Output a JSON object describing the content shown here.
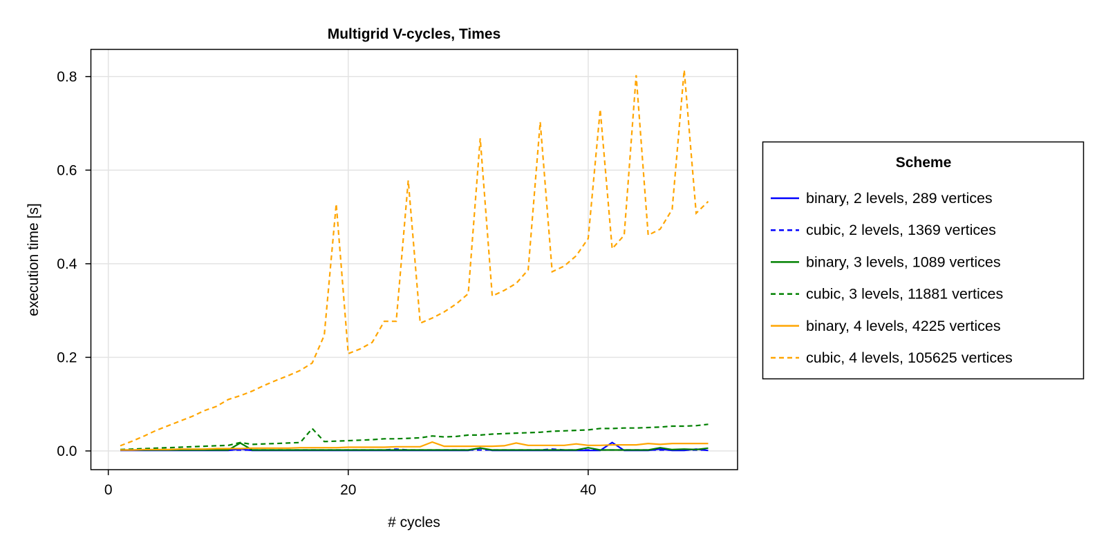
{
  "chart_data": {
    "type": "line",
    "title": "Multigrid V-cycles, Times",
    "xlabel": "# cycles",
    "ylabel": "execution time [s]",
    "xlim": [
      -1.45,
      52.45
    ],
    "ylim": [
      -0.04,
      0.858
    ],
    "xticks": [
      0,
      20,
      40
    ],
    "xtick_labels": [
      "0",
      "20",
      "40"
    ],
    "yticks": [
      0.0,
      0.2,
      0.4,
      0.6,
      0.8
    ],
    "ytick_labels": [
      "0.0",
      "0.2",
      "0.4",
      "0.6",
      "0.8"
    ],
    "grid": true,
    "legend": {
      "title": "Scheme",
      "placement": "right"
    },
    "x": [
      1,
      2,
      3,
      4,
      5,
      6,
      7,
      8,
      9,
      10,
      11,
      12,
      13,
      14,
      15,
      16,
      17,
      18,
      19,
      20,
      21,
      22,
      23,
      24,
      25,
      26,
      27,
      28,
      29,
      30,
      31,
      32,
      33,
      34,
      35,
      36,
      37,
      38,
      39,
      40,
      41,
      42,
      43,
      44,
      45,
      46,
      47,
      48,
      49,
      50
    ],
    "series": [
      {
        "name": "binary, 2 levels, 289 vertices",
        "color": "#0000ff",
        "dash": "solid",
        "values": [
          0.001,
          0.001,
          0.001,
          0.001,
          0.001,
          0.001,
          0.001,
          0.001,
          0.001,
          0.001,
          0.004,
          0.001,
          0.001,
          0.001,
          0.001,
          0.001,
          0.001,
          0.001,
          0.001,
          0.001,
          0.001,
          0.001,
          0.001,
          0.001,
          0.001,
          0.001,
          0.001,
          0.001,
          0.001,
          0.001,
          0.006,
          0.001,
          0.001,
          0.001,
          0.001,
          0.001,
          0.001,
          0.001,
          0.001,
          0.001,
          0.001,
          0.018,
          0.001,
          0.001,
          0.001,
          0.004,
          0.001,
          0.001,
          0.004,
          0.001
        ]
      },
      {
        "name": "cubic, 2 levels, 1369 vertices",
        "color": "#0000ff",
        "dash": "dashed",
        "values": [
          0.002,
          0.002,
          0.002,
          0.002,
          0.002,
          0.002,
          0.002,
          0.002,
          0.002,
          0.002,
          0.002,
          0.002,
          0.002,
          0.002,
          0.002,
          0.002,
          0.002,
          0.002,
          0.002,
          0.002,
          0.002,
          0.002,
          0.002,
          0.004,
          0.002,
          0.002,
          0.002,
          0.002,
          0.002,
          0.002,
          0.002,
          0.002,
          0.002,
          0.002,
          0.002,
          0.002,
          0.004,
          0.002,
          0.002,
          0.002,
          0.002,
          0.002,
          0.002,
          0.002,
          0.002,
          0.002,
          0.002,
          0.002,
          0.002,
          0.002
        ]
      },
      {
        "name": "binary, 3 levels, 1089 vertices",
        "color": "#008000",
        "dash": "solid",
        "values": [
          0.002,
          0.002,
          0.002,
          0.002,
          0.002,
          0.002,
          0.002,
          0.002,
          0.002,
          0.002,
          0.017,
          0.002,
          0.002,
          0.002,
          0.002,
          0.002,
          0.002,
          0.002,
          0.002,
          0.002,
          0.002,
          0.002,
          0.002,
          0.002,
          0.002,
          0.002,
          0.002,
          0.002,
          0.002,
          0.002,
          0.006,
          0.002,
          0.002,
          0.002,
          0.002,
          0.002,
          0.002,
          0.002,
          0.002,
          0.007,
          0.002,
          0.002,
          0.002,
          0.002,
          0.002,
          0.007,
          0.003,
          0.004,
          0.003,
          0.006
        ]
      },
      {
        "name": "cubic, 3 levels, 11881 vertices",
        "color": "#008000",
        "dash": "dashed",
        "values": [
          0.003,
          0.004,
          0.005,
          0.006,
          0.007,
          0.008,
          0.009,
          0.01,
          0.011,
          0.012,
          0.018,
          0.014,
          0.015,
          0.016,
          0.017,
          0.018,
          0.048,
          0.02,
          0.021,
          0.022,
          0.023,
          0.024,
          0.026,
          0.026,
          0.027,
          0.028,
          0.032,
          0.03,
          0.031,
          0.034,
          0.034,
          0.036,
          0.037,
          0.038,
          0.039,
          0.04,
          0.042,
          0.043,
          0.044,
          0.045,
          0.048,
          0.048,
          0.049,
          0.049,
          0.05,
          0.051,
          0.053,
          0.053,
          0.054,
          0.057
        ]
      },
      {
        "name": "binary, 4 levels, 4225 vertices",
        "color": "#ffa500",
        "dash": "solid",
        "values": [
          0.002,
          0.002,
          0.003,
          0.003,
          0.003,
          0.004,
          0.004,
          0.004,
          0.005,
          0.005,
          0.005,
          0.006,
          0.006,
          0.006,
          0.006,
          0.007,
          0.007,
          0.007,
          0.007,
          0.008,
          0.008,
          0.008,
          0.008,
          0.009,
          0.009,
          0.009,
          0.019,
          0.01,
          0.01,
          0.01,
          0.01,
          0.01,
          0.011,
          0.017,
          0.012,
          0.012,
          0.012,
          0.012,
          0.015,
          0.012,
          0.012,
          0.013,
          0.013,
          0.013,
          0.016,
          0.014,
          0.016,
          0.016,
          0.016,
          0.016
        ]
      },
      {
        "name": "cubic, 4 levels, 105625 vertices",
        "color": "#ffa500",
        "dash": "dashed",
        "values": [
          0.011,
          0.021,
          0.032,
          0.044,
          0.054,
          0.064,
          0.074,
          0.086,
          0.095,
          0.11,
          0.118,
          0.128,
          0.14,
          0.151,
          0.161,
          0.172,
          0.188,
          0.247,
          0.528,
          0.208,
          0.218,
          0.232,
          0.277,
          0.277,
          0.578,
          0.273,
          0.284,
          0.297,
          0.314,
          0.336,
          0.668,
          0.331,
          0.343,
          0.358,
          0.387,
          0.703,
          0.383,
          0.395,
          0.417,
          0.454,
          0.73,
          0.432,
          0.461,
          0.803,
          0.461,
          0.474,
          0.516,
          0.814,
          0.508,
          0.533
        ]
      }
    ]
  }
}
